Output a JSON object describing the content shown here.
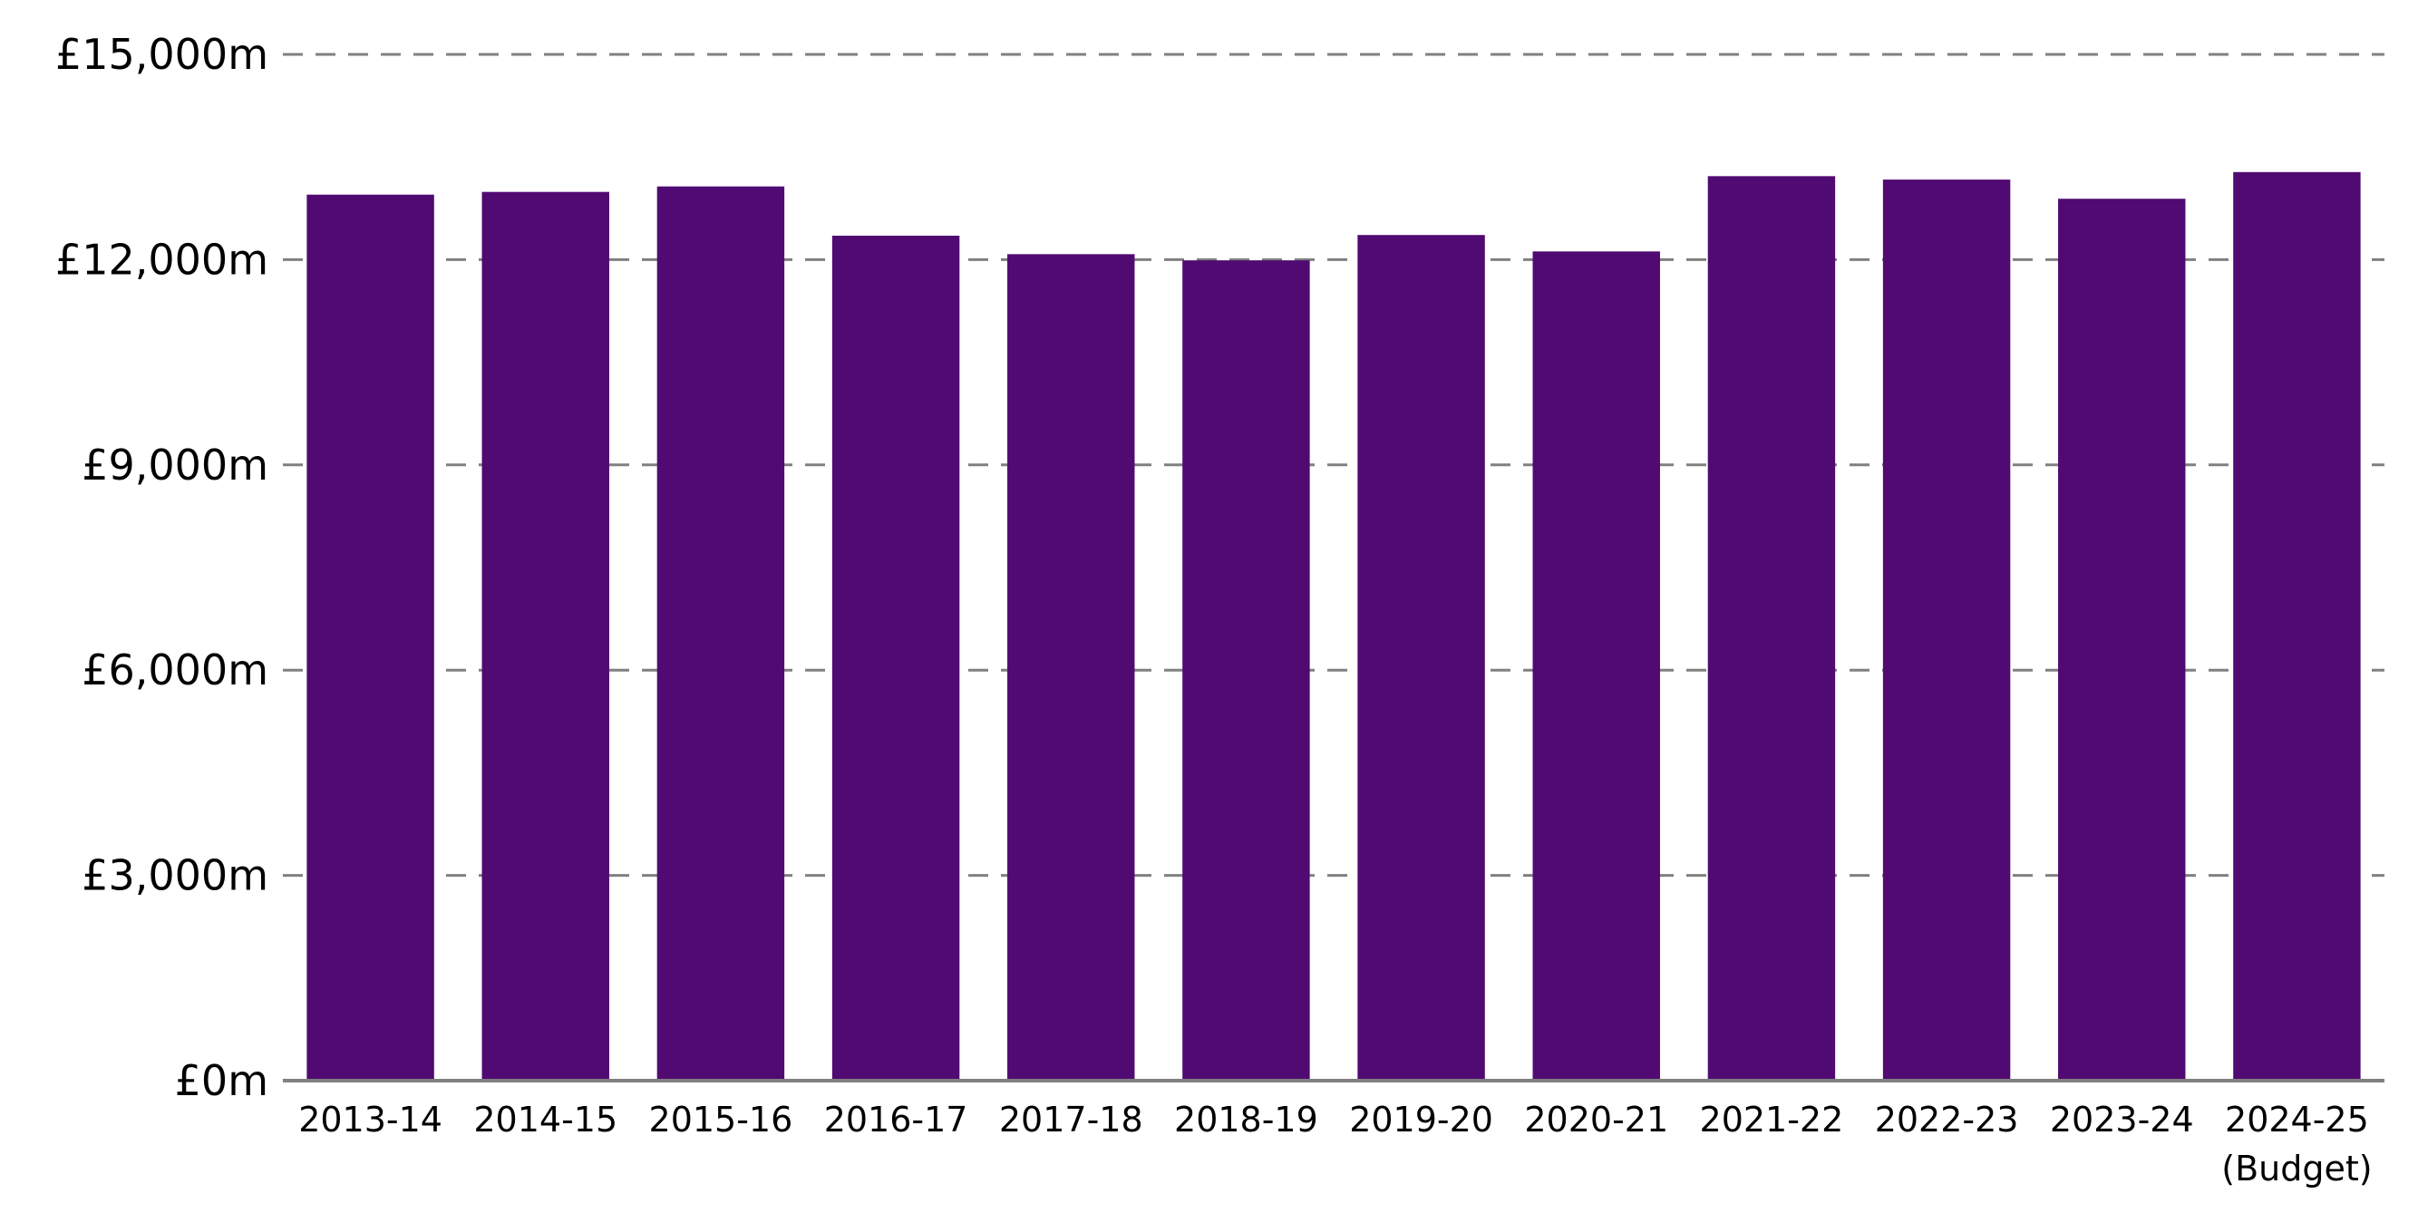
{
  "chart_data": {
    "type": "bar",
    "title": "",
    "xlabel": "",
    "ylabel": "",
    "categories": [
      "2013-14",
      "2014-15",
      "2015-16",
      "2016-17",
      "2017-18",
      "2018-19",
      "2019-20",
      "2020-21",
      "2021-22",
      "2022-23",
      "2023-24",
      "2024-25"
    ],
    "category_sublabels": [
      "",
      "",
      "",
      "",
      "",
      "",
      "",
      "",
      "",
      "",
      "",
      "(Budget)"
    ],
    "values": [
      12950,
      12990,
      13070,
      12350,
      12080,
      11990,
      12360,
      12120,
      13220,
      13170,
      12890,
      13280
    ],
    "ylim": [
      0,
      15000
    ],
    "yticks": [
      0,
      3000,
      6000,
      9000,
      12000,
      15000
    ],
    "ytick_labels": [
      "£0m",
      "£3,000m",
      "£6,000m",
      "£9,000m",
      "£12,000m",
      "£15,000m"
    ],
    "grid": true,
    "grid_style": "dashed",
    "legend": "none",
    "colors": {
      "bar": "#500A72",
      "grid": "#808080",
      "axis": "#808080"
    }
  }
}
